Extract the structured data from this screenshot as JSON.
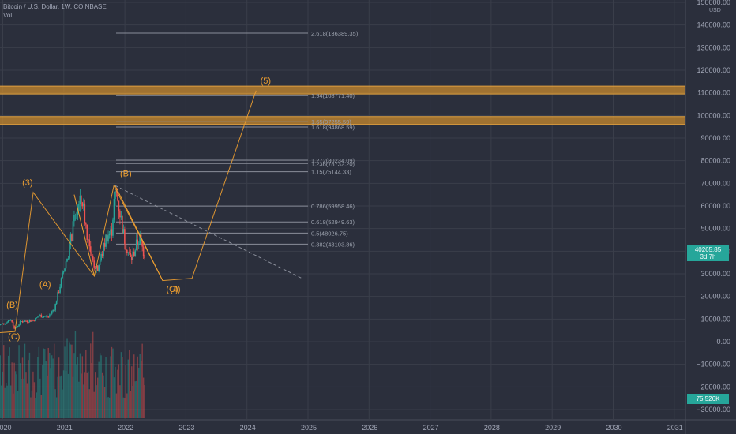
{
  "header": {
    "symbol_line": "Bitcoin / U.S. Dollar, 1W, COINBASE",
    "volume_label": "Vol"
  },
  "price_axis": {
    "currency": "USD",
    "ticks": [
      "150000.00",
      "140000.00",
      "130000.00",
      "120000.00",
      "110000.00",
      "100000.00",
      "90000.00",
      "80000.00",
      "70000.00",
      "60000.00",
      "50000.00",
      "40000.00",
      "30000.00",
      "20000.00",
      "10000.00",
      "0.00",
      "−10000.00",
      "−20000.00",
      "−30000.00"
    ],
    "tick_values": [
      150000,
      140000,
      130000,
      120000,
      110000,
      100000,
      90000,
      80000,
      70000,
      60000,
      50000,
      40000,
      30000,
      20000,
      10000,
      0,
      -10000,
      -20000,
      -30000
    ],
    "current_price": "40265.85",
    "countdown": "3d 7h",
    "current_volume": "75.526K"
  },
  "time_axis": {
    "labels": [
      "2020",
      "2021",
      "2022",
      "2023",
      "2024",
      "2025",
      "2026",
      "2027",
      "2028",
      "2029",
      "2030",
      "2031"
    ]
  },
  "fib_levels": [
    {
      "label": "2.618(136389.35)",
      "value": 136389
    },
    {
      "label": "1.94(108771.40)",
      "value": 108771
    },
    {
      "label": "1.65(97255.59)",
      "value": 97256
    },
    {
      "label": "1.618(94868.59)",
      "value": 94869
    },
    {
      "label": "1.272(80234.09)",
      "value": 80234
    },
    {
      "label": "1.236(78732.20)",
      "value": 78732
    },
    {
      "label": "1.15(75144.33)",
      "value": 75144
    },
    {
      "label": "0.786(59958.46)",
      "value": 59958
    },
    {
      "label": "0.618(52949.63)",
      "value": 52950
    },
    {
      "label": "0.5(48026.75)",
      "value": 48027
    },
    {
      "label": "0.382(43103.86)",
      "value": 43104
    }
  ],
  "zones": [
    {
      "low": 109500,
      "high": 113000
    },
    {
      "low": 96000,
      "high": 99500
    }
  ],
  "wave_labels": [
    "(A)",
    "(B)",
    "(C)",
    "(3)",
    "(A)",
    "(B)",
    "(C)",
    "(4)",
    "(5)"
  ],
  "colors": {
    "background": "#2b2f3c",
    "grid": "#3a3e4a",
    "wave": "#f0a030",
    "zone": "#c88a2e",
    "bull": "#26a69a",
    "bear": "#ef5350",
    "fib": "#8a8e9a",
    "axis_text": "#a3a8b8"
  }
}
